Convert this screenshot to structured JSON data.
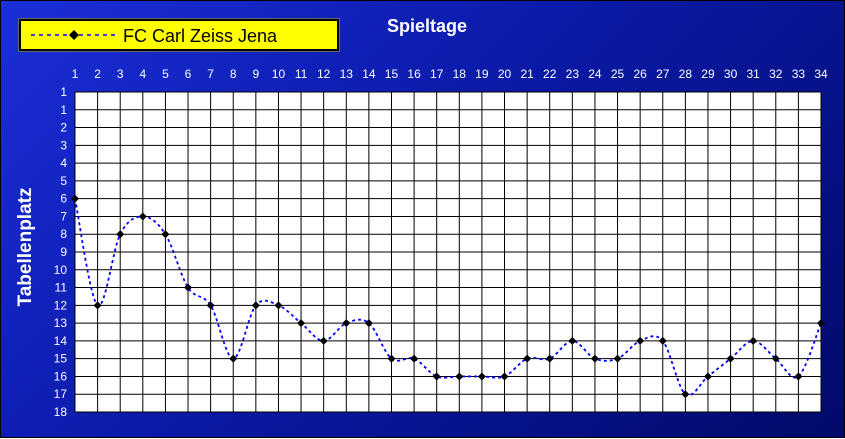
{
  "chart_data": {
    "type": "line",
    "title": "Spieltage",
    "ylabel": "Tabellenplatz",
    "legend": "top-left",
    "grid": true,
    "y_reversed": true,
    "x": [
      1,
      2,
      3,
      4,
      5,
      6,
      7,
      8,
      9,
      10,
      11,
      12,
      13,
      14,
      15,
      16,
      17,
      18,
      19,
      20,
      21,
      22,
      23,
      24,
      25,
      26,
      27,
      28,
      29,
      30,
      31,
      32,
      33,
      34
    ],
    "x_tick_labels": [
      "1",
      "2",
      "3",
      "4",
      "5",
      "6",
      "7",
      "8",
      "9",
      "10",
      "11",
      "12",
      "13",
      "14",
      "15",
      "16",
      "17",
      "18",
      "19",
      "20",
      "21",
      "22",
      "23",
      "24",
      "25",
      "26",
      "27",
      "28",
      "29",
      "30",
      "31",
      "32",
      "33",
      "34"
    ],
    "y_tick_labels": [
      "1",
      "1",
      "2",
      "3",
      "4",
      "5",
      "6",
      "7",
      "8",
      "9",
      "10",
      "11",
      "12",
      "13",
      "14",
      "15",
      "16",
      "17",
      "18"
    ],
    "ylim": [
      0,
      18
    ],
    "series": [
      {
        "name": "FC Carl Zeiss Jena",
        "color": "#0000ff",
        "marker_color": "#000000",
        "values": [
          6,
          12,
          8,
          7,
          8,
          11,
          12,
          15,
          12,
          12,
          13,
          14,
          13,
          13,
          15,
          15,
          16,
          16,
          16,
          16,
          15,
          15,
          14,
          15,
          15,
          14,
          14,
          17,
          16,
          15,
          14,
          15,
          16,
          13
        ]
      }
    ]
  },
  "colors": {
    "background": "#1a2fd8",
    "plot_area": "#ffffff",
    "legend_bg": "#ffff00",
    "text": "#ffffff"
  }
}
